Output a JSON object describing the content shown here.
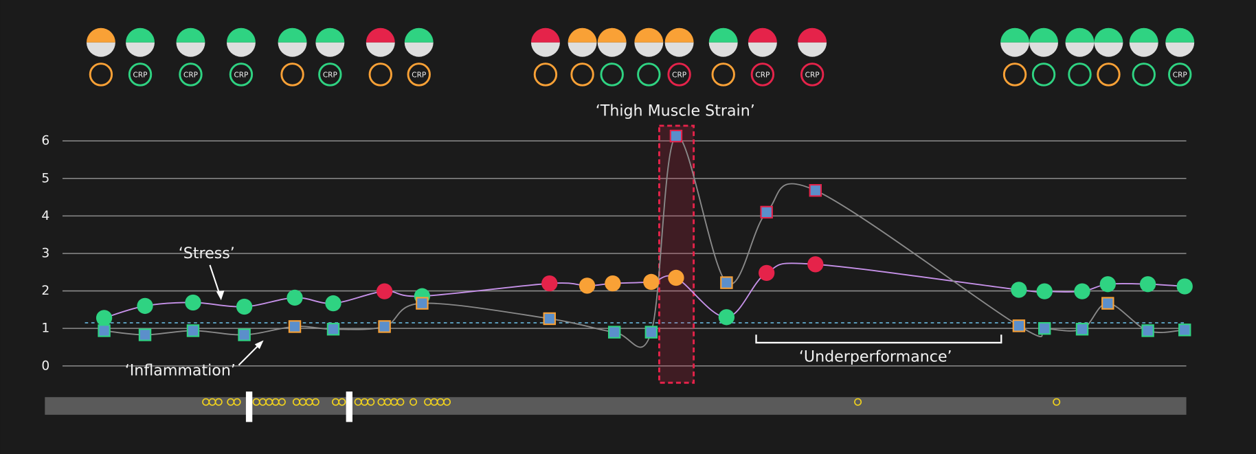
{
  "chart_data": {
    "type": "line",
    "ylim": [
      -0.3,
      6.5
    ],
    "yticks": [
      0,
      1,
      2,
      3,
      4,
      5,
      6
    ],
    "xlim": [
      56,
      1481
    ],
    "grid": true,
    "threshold": 1.15,
    "series": [
      {
        "name": "Stress",
        "color": "#c792ea",
        "x": [
          130,
          181,
          241,
          305,
          368,
          416,
          480,
          527,
          686,
          733,
          765,
          813,
          844,
          907,
          957,
          1018,
          1272,
          1304,
          1351,
          1383,
          1433,
          1479
        ],
        "values": [
          1.28,
          1.6,
          1.69,
          1.58,
          1.82,
          1.67,
          1.99,
          1.86,
          2.2,
          2.14,
          2.2,
          2.24,
          2.35,
          1.3,
          2.48,
          2.71,
          2.03,
          1.99,
          1.99,
          2.18,
          2.18,
          2.12
        ],
        "point_colors": [
          "#2fd382",
          "#2fd382",
          "#2fd382",
          "#2fd382",
          "#2fd382",
          "#2fd382",
          "#e5234a",
          "#2fd382",
          "#e5234a",
          "#f9a136",
          "#f9a136",
          "#f9a136",
          "#f9a136",
          "#2fd382",
          "#e5234a",
          "#e5234a",
          "#2fd382",
          "#2fd382",
          "#2fd382",
          "#2fd382",
          "#2fd382",
          "#2fd382"
        ]
      },
      {
        "name": "Inflammation",
        "color": "#8a8a8a",
        "x": [
          130,
          181,
          241,
          305,
          368,
          416,
          480,
          527,
          686,
          767,
          813,
          844,
          907,
          957,
          1018,
          1272,
          1304,
          1351,
          1383,
          1433,
          1479
        ],
        "values": [
          0.94,
          0.83,
          0.94,
          0.83,
          1.05,
          0.98,
          1.05,
          1.67,
          1.26,
          0.9,
          0.9,
          6.13,
          2.22,
          4.1,
          4.68,
          1.07,
          1.0,
          0.98,
          1.67,
          0.94,
          0.96
        ],
        "point_colors": [
          "#2fd382",
          "#2fd382",
          "#2fd382",
          "#2fd382",
          "#f9a136",
          "#2fd382",
          "#f9a136",
          "#f9a136",
          "#f9a136",
          "#2fd382",
          "#2fd382",
          "#e5234a",
          "#f9a136",
          "#e5234a",
          "#e5234a",
          "#f9a136",
          "#2fd382",
          "#2fd382",
          "#f9a136",
          "#2fd382",
          "#2fd382"
        ]
      }
    ],
    "indicators": [
      {
        "x": 126,
        "top": "#f9a136",
        "ring": "#f9a136",
        "label": null
      },
      {
        "x": 175,
        "top": "#2fd382",
        "ring": "#2fd382",
        "label": "CRP"
      },
      {
        "x": 238,
        "top": "#2fd382",
        "ring": "#2fd382",
        "label": "CRP"
      },
      {
        "x": 301,
        "top": "#2fd382",
        "ring": "#2fd382",
        "label": "CRP"
      },
      {
        "x": 365,
        "top": "#2fd382",
        "ring": "#f9a136",
        "label": null
      },
      {
        "x": 412,
        "top": "#2fd382",
        "ring": "#2fd382",
        "label": "CRP"
      },
      {
        "x": 475,
        "top": "#e5234a",
        "ring": "#f9a136",
        "label": null
      },
      {
        "x": 523,
        "top": "#2fd382",
        "ring": "#f9a136",
        "label": "CRP"
      },
      {
        "x": 681,
        "top": "#e5234a",
        "ring": "#f9a136",
        "label": null
      },
      {
        "x": 727,
        "top": "#f9a136",
        "ring": "#f9a136",
        "label": null
      },
      {
        "x": 764,
        "top": "#f9a136",
        "ring": "#2fd382",
        "label": null
      },
      {
        "x": 810,
        "top": "#f9a136",
        "ring": "#2fd382",
        "label": null
      },
      {
        "x": 848,
        "top": "#f9a136",
        "ring": "#e5234a",
        "label": "CRP"
      },
      {
        "x": 903,
        "top": "#2fd382",
        "ring": "#f9a136",
        "label": null
      },
      {
        "x": 952,
        "top": "#e5234a",
        "ring": "#e5234a",
        "label": "CRP"
      },
      {
        "x": 1014,
        "top": "#e5234a",
        "ring": "#e5234a",
        "label": "CRP"
      },
      {
        "x": 1267,
        "top": "#2fd382",
        "ring": "#f9a136",
        "label": null
      },
      {
        "x": 1303,
        "top": "#2fd382",
        "ring": "#2fd382",
        "label": null
      },
      {
        "x": 1348,
        "top": "#2fd382",
        "ring": "#2fd382",
        "label": null
      },
      {
        "x": 1384,
        "top": "#2fd382",
        "ring": "#f9a136",
        "label": null
      },
      {
        "x": 1428,
        "top": "#2fd382",
        "ring": "#2fd382",
        "label": null
      },
      {
        "x": 1473,
        "top": "#2fd382",
        "ring": "#2fd382",
        "label": "CRP"
      }
    ],
    "events": [
      257,
      265,
      273,
      288,
      296,
      320,
      328,
      336,
      344,
      352,
      370,
      378,
      386,
      394,
      419,
      427,
      447,
      455,
      463,
      476,
      484,
      492,
      500,
      516,
      534,
      542,
      550,
      558,
      1071,
      1319
    ],
    "sessions": [
      311,
      436
    ],
    "annotations": {
      "strain": "‘Thigh Muscle Strain’",
      "stress": "‘Stress’",
      "inflammation": "‘Inflammation’",
      "underperformance": "‘Underperformance’"
    }
  }
}
